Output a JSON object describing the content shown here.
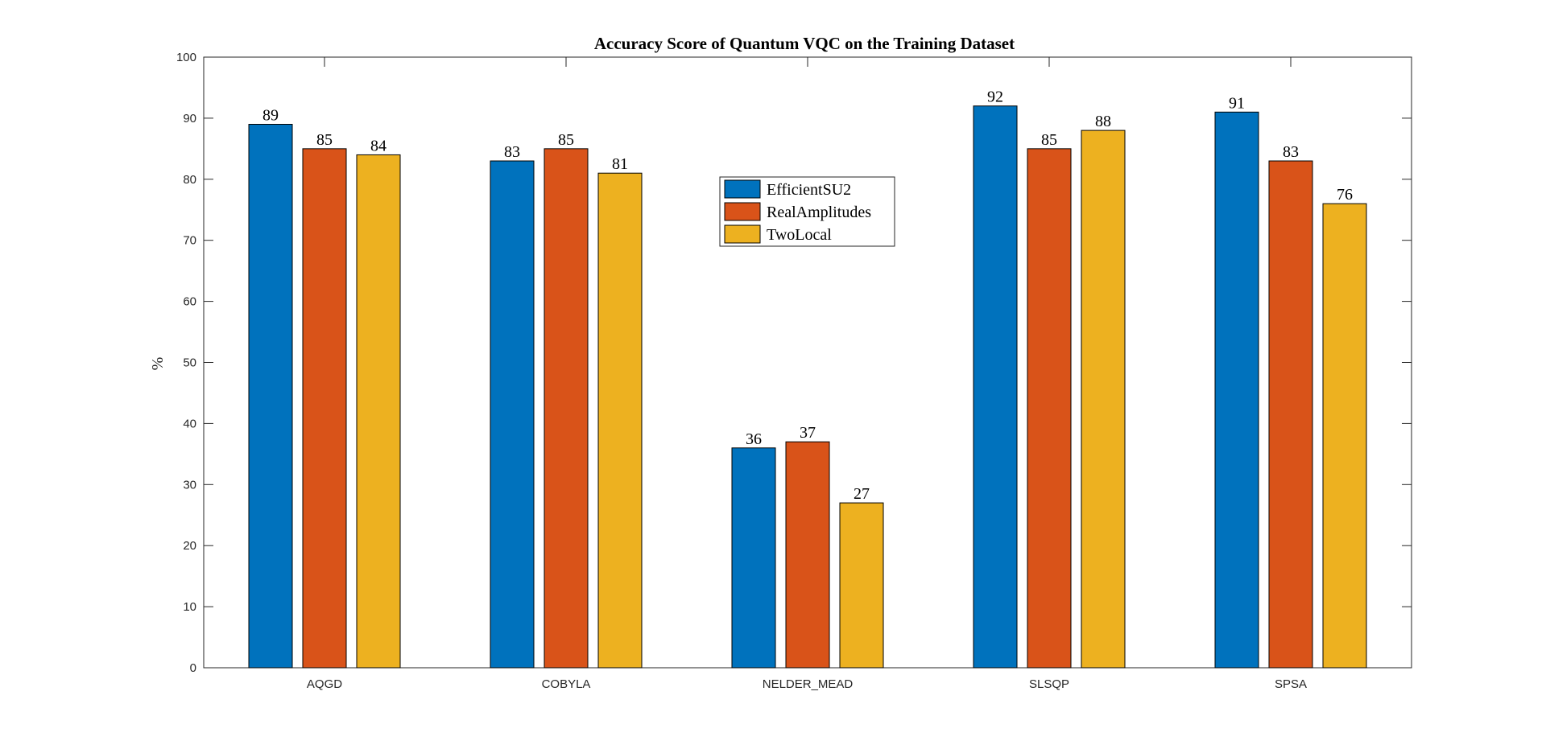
{
  "chart_data": {
    "type": "bar",
    "title": "Accuracy Score of Quantum VQC on the Training Dataset",
    "xlabel": "",
    "ylabel": "%",
    "categories": [
      "AQGD",
      "COBYLA",
      "NELDER_MEAD",
      "SLSQP",
      "SPSA"
    ],
    "ylim": [
      0,
      100
    ],
    "yticks": [
      0,
      10,
      20,
      30,
      40,
      50,
      60,
      70,
      80,
      90,
      100
    ],
    "grid": false,
    "legend_position": "center-top",
    "data_labels": true,
    "series": [
      {
        "name": "EfficientSU2",
        "color": "#0072BD",
        "values": [
          89,
          83,
          36,
          92,
          91
        ]
      },
      {
        "name": "RealAmplitudes",
        "color": "#D95319",
        "values": [
          85,
          85,
          37,
          85,
          83
        ]
      },
      {
        "name": "TwoLocal",
        "color": "#EDB120",
        "values": [
          84,
          81,
          27,
          88,
          76
        ]
      }
    ]
  }
}
